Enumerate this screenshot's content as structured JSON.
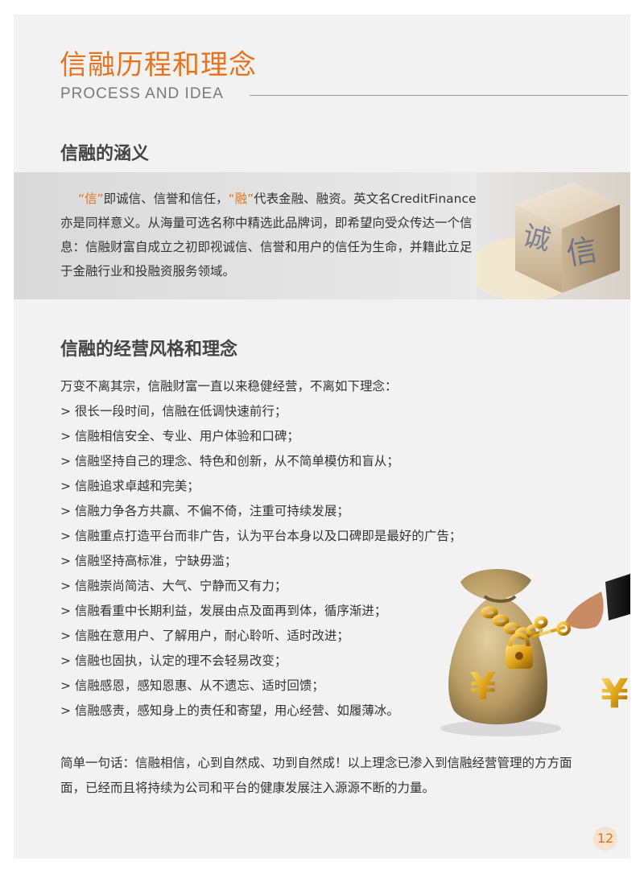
{
  "header": {
    "title": "信融历程和理念",
    "subtitle": "PROCESS AND IDEA"
  },
  "section1": {
    "heading": "信融的涵义",
    "q1": "“信”",
    "t1": "即诚信、信誉和信任，",
    "q2": "“融”",
    "t2": "代表金融、融资。英文名CreditFinance亦是同样意义。从海量可选名称中精选此品牌词，即希望向受众传达一个信息：信融财富自成立之初即视诚信、信誉和用户的信任为生命，并籍此立足于金融行业和投融资服务领域。",
    "image_text": "诚信"
  },
  "section2": {
    "heading": "信融的经营风格和理念",
    "items": [
      "万变不离其宗，信融财富一直以来稳健经营，不离如下理念：",
      "> 很长一段时间，信融在低调快速前行；",
      "> 信融相信安全、专业、用户体验和口碑；",
      "> 信融坚持自己的理念、特色和创新，从不简单模仿和盲从；",
      "> 信融追求卓越和完美；",
      "> 信融力争各方共赢、不偏不倚，注重可持续发展；",
      "> 信融重点打造平台而非广告，认为平台本身以及口碑即是最好的广告；",
      "> 信融坚持高标准，宁缺毋滥；",
      "> 信融崇尚简洁、大气、宁静而又有力；",
      "> 信融看重中长期利益，发展由点及面再到体，循序渐进；",
      "> 信融在意用户、了解用户，耐心聆听、适时改进；",
      "> 信融也固执，认定的理不会轻易改变；",
      "> 信融感恩，感知恩惠、从不遗忘、适时回馈；",
      "> 信融感责，感知身上的责任和寄望，用心经营、如履薄冰。"
    ],
    "summary": "简单一句话：信融相信，心到自然成、功到自然成！以上理念已渗入到信融经营管理的方方面面，已经而且将持续为公司和平台的健康发展注入源源不断的力量。",
    "bag_symbol": "¥"
  },
  "page_number": "12"
}
